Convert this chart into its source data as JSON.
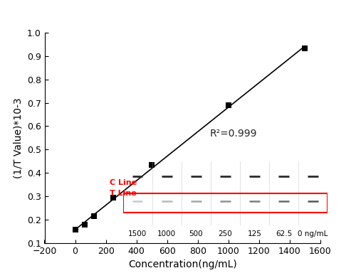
{
  "x_data": [
    0,
    62.5,
    125,
    250,
    500,
    1000,
    1500
  ],
  "y_data": [
    0.157,
    0.178,
    0.215,
    0.294,
    0.434,
    0.691,
    0.932
  ],
  "line_color": "#000000",
  "marker_color": "#000000",
  "marker": "s",
  "marker_size": 5,
  "xlabel": "Concentration(ng/mL)",
  "ylabel": "(1/T Value)*10-3",
  "xlim": [
    -200,
    1600
  ],
  "ylim": [
    0.1,
    1.0
  ],
  "xticks": [
    -200,
    0,
    200,
    400,
    600,
    800,
    1000,
    1200,
    1400,
    1600
  ],
  "yticks": [
    0.1,
    0.2,
    0.3,
    0.4,
    0.5,
    0.6,
    0.7,
    0.8,
    0.9,
    1.0
  ],
  "r2_text": "R²=0.999",
  "c_line_label": "C Line",
  "t_line_label": "T Line",
  "inset_labels": [
    "1500",
    "1000",
    "500",
    "250",
    "125",
    "62.5",
    "0 ng/mL"
  ],
  "background_color": "#ffffff",
  "inset_bg_color": "#d8d8d8",
  "c_line_colors": [
    "#3a3a3a",
    "#3a3a3a",
    "#3a3a3a",
    "#3a3a3a",
    "#3a3a3a",
    "#3a3a3a",
    "#3a3a3a"
  ],
  "t_line_grays": [
    200,
    185,
    165,
    145,
    125,
    105,
    85
  ]
}
